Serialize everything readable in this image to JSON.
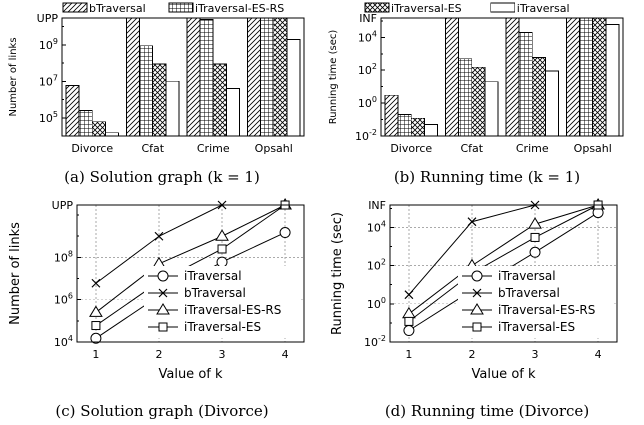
{
  "colors": {
    "ink": "#000000",
    "background": "#ffffff",
    "grid": "#aaaaaa"
  },
  "panels": {
    "a": {
      "caption": "(a) Solution graph (k = 1)"
    },
    "b": {
      "caption": "(b) Running time (k = 1)"
    },
    "c": {
      "caption": "(c) Solution graph (Divorce)"
    },
    "d": {
      "caption": "(d) Running time (Divorce)"
    }
  },
  "chart_data": [
    {
      "id": "a",
      "type": "bar",
      "scale": "log",
      "ylabel": "Number of links",
      "categories": [
        "Divorce",
        "Cfat",
        "Crime",
        "Opsahl"
      ],
      "ylim": [
        10000,
        30000000000
      ],
      "yticks": [
        {
          "label": "10",
          "exp": "5",
          "value": 100000
        },
        {
          "label": "10",
          "exp": "7",
          "value": 10000000
        },
        {
          "label": "10",
          "exp": "9",
          "value": 1000000000
        },
        {
          "label": "UPP",
          "exp": "",
          "value": 30000000000
        }
      ],
      "legend_position": "top",
      "series": [
        {
          "name": "bTraversal",
          "pattern": "diag",
          "values": [
            6000000,
            30000000000,
            30000000000,
            30000000000
          ]
        },
        {
          "name": "iTraversal-ES-RS",
          "pattern": "grid",
          "values": [
            250000,
            900000000,
            25000000000,
            30000000000
          ]
        },
        {
          "name": "iTraversal-ES",
          "pattern": "cross",
          "values": [
            60000,
            90000000,
            90000000,
            30000000000
          ]
        },
        {
          "name": "iTraversal",
          "pattern": "blank",
          "values": [
            15000,
            10000000,
            4000000,
            2000000000
          ]
        }
      ]
    },
    {
      "id": "b",
      "type": "bar",
      "scale": "log",
      "ylabel": "Running time (sec)",
      "categories": [
        "Divorce",
        "Cfat",
        "Crime",
        "Opsahl"
      ],
      "ylim": [
        0.01,
        150000
      ],
      "yticks": [
        {
          "label": "10",
          "exp": "-2",
          "value": 0.01
        },
        {
          "label": "10",
          "exp": "0",
          "value": 1
        },
        {
          "label": "10",
          "exp": "2",
          "value": 100
        },
        {
          "label": "10",
          "exp": "4",
          "value": 10000
        },
        {
          "label": "INF",
          "exp": "",
          "value": 150000
        }
      ],
      "legend_position": "top",
      "series": [
        {
          "name": "bTraversal",
          "pattern": "diag",
          "values": [
            3,
            150000,
            150000,
            150000
          ]
        },
        {
          "name": "iTraversal-ES-RS",
          "pattern": "grid",
          "values": [
            0.2,
            500,
            20000,
            150000
          ]
        },
        {
          "name": "iTraversal-ES",
          "pattern": "cross",
          "values": [
            0.12,
            150,
            600,
            150000
          ]
        },
        {
          "name": "iTraversal",
          "pattern": "blank",
          "values": [
            0.05,
            20,
            90,
            60000
          ]
        }
      ]
    },
    {
      "id": "c",
      "type": "line",
      "scale": "log",
      "xlabel": "Value of k",
      "ylabel": "Number of links",
      "x": [
        1,
        2,
        3,
        4
      ],
      "xlim": [
        0.7,
        4.3
      ],
      "ylim": [
        10000,
        30000000000
      ],
      "yticks": [
        {
          "label": "10",
          "exp": "4",
          "value": 10000
        },
        {
          "label": "10",
          "exp": "6",
          "value": 1000000
        },
        {
          "label": "10",
          "exp": "8",
          "value": 100000000
        },
        {
          "label": "UPP",
          "exp": "",
          "value": 30000000000
        }
      ],
      "legend_position": "bottom-right",
      "series": [
        {
          "name": "iTraversal",
          "marker": "circle",
          "values": [
            15000,
            1500000,
            60000000,
            1500000000
          ]
        },
        {
          "name": "bTraversal",
          "marker": "x",
          "values": [
            6000000,
            1000000000,
            30000000000,
            30000000000
          ]
        },
        {
          "name": "iTraversal-ES-RS",
          "marker": "triangle",
          "values": [
            250000,
            50000000,
            1000000000,
            30000000000
          ]
        },
        {
          "name": "iTraversal-ES",
          "marker": "square",
          "values": [
            60000,
            7000000,
            250000000,
            30000000000
          ]
        }
      ]
    },
    {
      "id": "d",
      "type": "line",
      "scale": "log",
      "xlabel": "Value of k",
      "ylabel": "Running time (sec)",
      "x": [
        1,
        2,
        3,
        4
      ],
      "xlim": [
        0.7,
        4.3
      ],
      "ylim": [
        0.01,
        150000
      ],
      "yticks": [
        {
          "label": "10",
          "exp": "-2",
          "value": 0.01
        },
        {
          "label": "10",
          "exp": "0",
          "value": 1
        },
        {
          "label": "10",
          "exp": "2",
          "value": 100
        },
        {
          "label": "10",
          "exp": "4",
          "value": 10000
        },
        {
          "label": "INF",
          "exp": "",
          "value": 150000
        }
      ],
      "legend_position": "bottom-right",
      "series": [
        {
          "name": "iTraversal",
          "marker": "circle",
          "values": [
            0.04,
            5,
            500,
            60000
          ]
        },
        {
          "name": "bTraversal",
          "marker": "x",
          "values": [
            3,
            20000,
            150000,
            150000
          ]
        },
        {
          "name": "iTraversal-ES-RS",
          "marker": "triangle",
          "values": [
            0.3,
            100,
            15000,
            150000
          ]
        },
        {
          "name": "iTraversal-ES",
          "marker": "square",
          "values": [
            0.12,
            40,
            3000,
            150000
          ]
        }
      ]
    }
  ]
}
